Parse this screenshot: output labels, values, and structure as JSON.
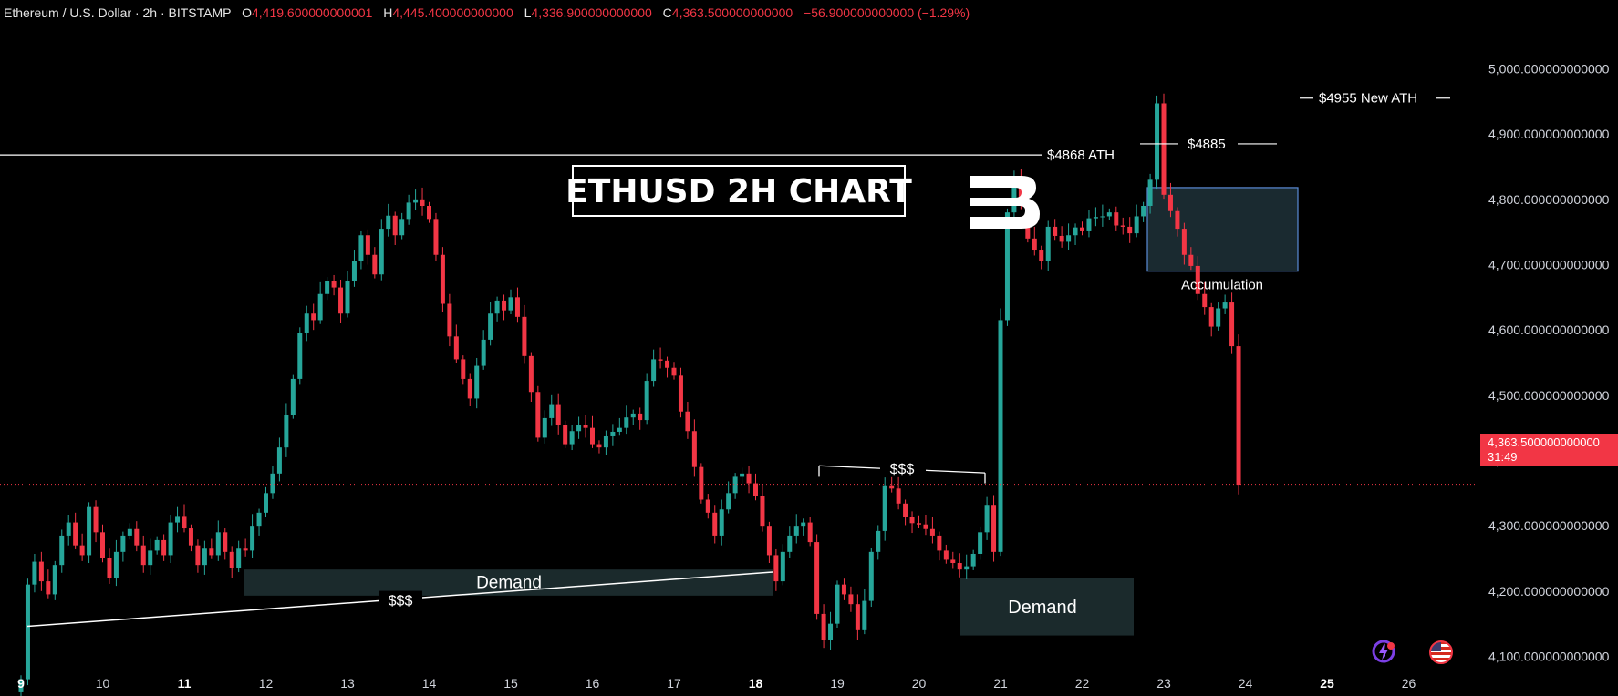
{
  "header": {
    "symbol": "Ethereum / U.S. Dollar · 2h · BITSTAMP",
    "o_label": "O",
    "o": "4,419.600000000001",
    "h_label": "H",
    "h": "4,445.400000000000",
    "l_label": "L",
    "l": "4,336.900000000000",
    "c_label": "C",
    "c": "4,363.500000000000",
    "change": "−56.900000000000 (−1.29%)"
  },
  "colors": {
    "up": "#26a69a",
    "down": "#f23645",
    "background": "#000000",
    "demand": "#1b2a2c",
    "accumulation_border": "#5b8bd6"
  },
  "price_tag": {
    "price": "4,363.500000000000",
    "countdown": "31:49"
  },
  "icons": [
    "lightning-avatar-icon",
    "us-flag-icon"
  ],
  "chart_data": {
    "type": "candlestick",
    "title": "ETHUSD 2H CHART",
    "ylim": [
      4040,
      5025
    ],
    "yticks": [
      {
        "value": 5000,
        "label": "5,000.000000000000"
      },
      {
        "value": 4900,
        "label": "4,900.000000000000"
      },
      {
        "value": 4800,
        "label": "4,800.000000000000"
      },
      {
        "value": 4700,
        "label": "4,700.000000000000"
      },
      {
        "value": 4600,
        "label": "4,600.000000000000"
      },
      {
        "value": 4500,
        "label": "4,500.000000000000"
      },
      {
        "value": 4400,
        "label": "4,400.000000000000"
      },
      {
        "value": 4300,
        "label": "4,300.000000000000"
      },
      {
        "value": 4200,
        "label": "4,200.000000000000"
      },
      {
        "value": 4100,
        "label": "4,100.000000000000"
      }
    ],
    "xticks": [
      {
        "day": 9,
        "label": "9",
        "bold": true
      },
      {
        "day": 10,
        "label": "10"
      },
      {
        "day": 11,
        "label": "11",
        "bold": true
      },
      {
        "day": 12,
        "label": "12"
      },
      {
        "day": 13,
        "label": "13"
      },
      {
        "day": 14,
        "label": "14"
      },
      {
        "day": 15,
        "label": "15"
      },
      {
        "day": 16,
        "label": "16"
      },
      {
        "day": 17,
        "label": "17"
      },
      {
        "day": 18,
        "label": "18",
        "bold": true
      },
      {
        "day": 19,
        "label": "19"
      },
      {
        "day": 20,
        "label": "20"
      },
      {
        "day": 21,
        "label": "21"
      },
      {
        "day": 22,
        "label": "22"
      },
      {
        "day": 23,
        "label": "23"
      },
      {
        "day": 24,
        "label": "24"
      },
      {
        "day": 25,
        "label": "25",
        "bold": true
      },
      {
        "day": 26,
        "label": "26"
      }
    ],
    "current_price": 4363.5,
    "candles_per_day": 12,
    "start_day": 9.0,
    "closes": [
      4065,
      4210,
      4245,
      4215,
      4195,
      4240,
      4285,
      4305,
      4270,
      4255,
      4330,
      4290,
      4250,
      4220,
      4260,
      4285,
      4295,
      4270,
      4240,
      4262,
      4278,
      4255,
      4305,
      4315,
      4296,
      4270,
      4240,
      4265,
      4255,
      4290,
      4260,
      4235,
      4265,
      4262,
      4300,
      4320,
      4350,
      4380,
      4420,
      4470,
      4525,
      4595,
      4625,
      4615,
      4655,
      4675,
      4665,
      4625,
      4675,
      4705,
      4745,
      4715,
      4685,
      4755,
      4775,
      4745,
      4770,
      4795,
      4800,
      4790,
      4770,
      4715,
      4640,
      4590,
      4555,
      4525,
      4495,
      4545,
      4585,
      4625,
      4645,
      4630,
      4650,
      4620,
      4560,
      4505,
      4435,
      4465,
      4485,
      4455,
      4425,
      4445,
      4455,
      4450,
      4425,
      4420,
      4437,
      4444,
      4450,
      4466,
      4472,
      4462,
      4522,
      4555,
      4553,
      4542,
      4530,
      4475,
      4445,
      4390,
      4340,
      4320,
      4285,
      4325,
      4350,
      4375,
      4380,
      4365,
      4345,
      4300,
      4255,
      4215,
      4260,
      4285,
      4300,
      4305,
      4275,
      4165,
      4125,
      4150,
      4210,
      4195,
      4180,
      4140,
      4185,
      4260,
      4292,
      4362,
      4357,
      4334,
      4313,
      4304,
      4302,
      4295,
      4285,
      4262,
      4248,
      4243,
      4233,
      4238,
      4257,
      4290,
      4332,
      4260,
      4615,
      4780,
      4835,
      4800,
      4740,
      4723,
      4705,
      4758,
      4744,
      4735,
      4745,
      4757,
      4751,
      4771,
      4773,
      4774,
      4780,
      4760,
      4758,
      4748,
      4774,
      4790,
      4830,
      4947,
      4807,
      4782,
      4755,
      4715,
      4698,
      4655,
      4635,
      4605,
      4633,
      4642,
      4575,
      4363
    ],
    "annotations": {
      "ath_label": "$4868 ATH",
      "level_4885_label": "$4885",
      "new_ath_label": "$4955 New ATH",
      "accumulation_label": "Accumulation",
      "demand1_label": "Demand",
      "demand2_label": "Demand",
      "liquidity1_label": "$$$",
      "liquidity2_label": "$$$"
    }
  }
}
